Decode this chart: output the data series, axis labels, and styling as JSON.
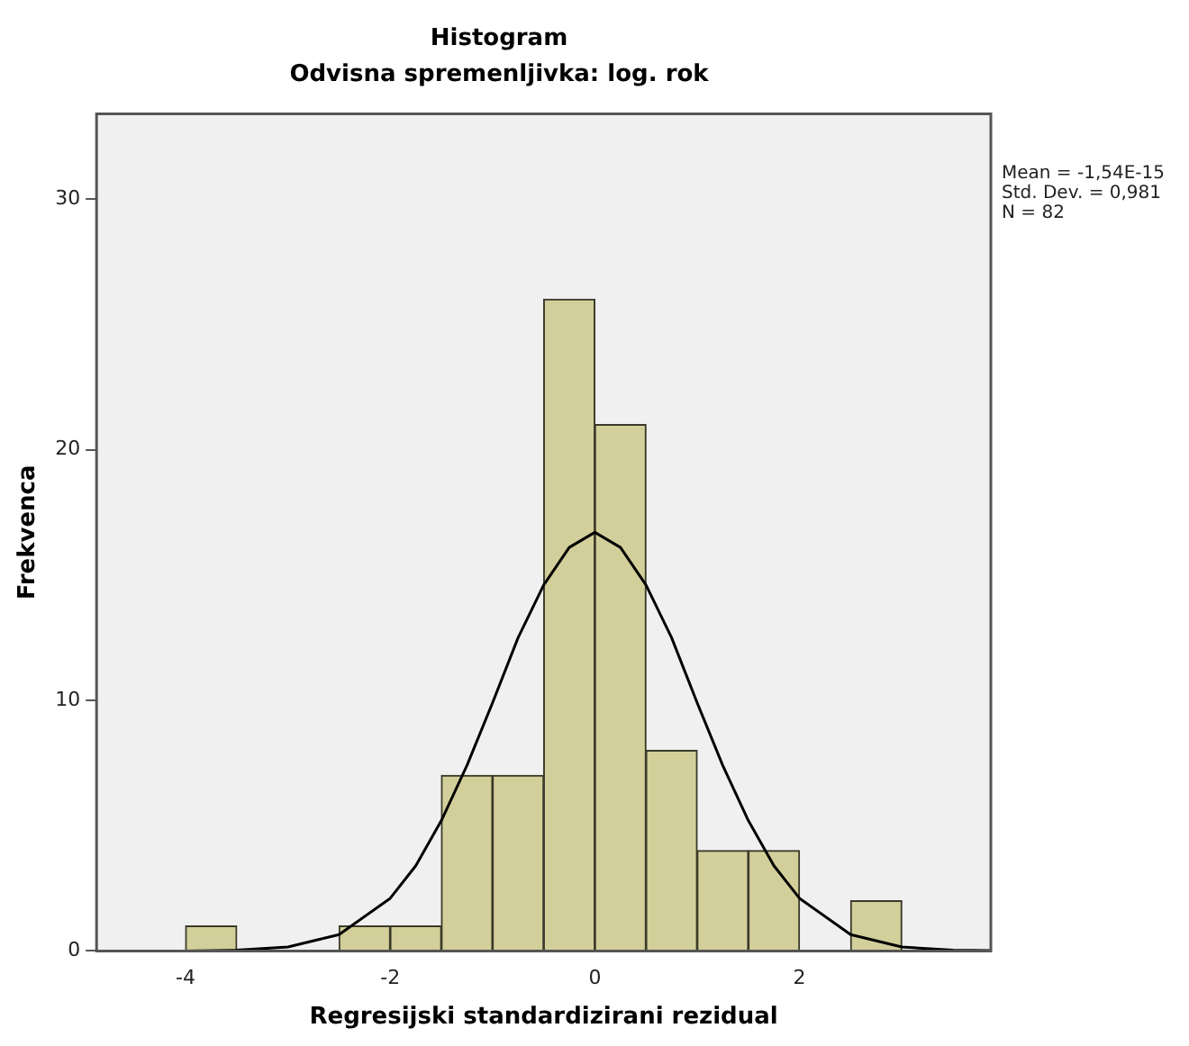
{
  "chart_data": {
    "type": "histogram",
    "title": "Histogram",
    "subtitle": "Odvisna spremenljivka: log. rok",
    "xlabel": "Regresijski standardizirani rezidual",
    "ylabel": "Frekvenca",
    "bins": [
      -4,
      -3.5,
      -3,
      -2.5,
      -2,
      -1.5,
      -1,
      -0.5,
      0,
      0.5,
      1,
      1.5,
      2,
      2.5,
      3
    ],
    "values": [
      1,
      0,
      0,
      1,
      1,
      7,
      7,
      26,
      21,
      8,
      4,
      4,
      0,
      2
    ],
    "color": "#d3cf9a",
    "series": [
      {
        "type": "line",
        "color": "#000000",
        "x": [
          -4.87,
          -4.5,
          -4,
          -3.5,
          -3,
          -2.5,
          -2,
          -1.75,
          -1.5,
          -1.25,
          -1,
          -0.75,
          -0.5,
          -0.25,
          0,
          0.25,
          0.5,
          0.75,
          1,
          1.25,
          1.5,
          1.75,
          2,
          2.5,
          3,
          3.5,
          3.87
        ],
        "values": [
          0,
          0,
          0,
          0.03,
          0.16,
          0.65,
          2.1,
          3.4,
          5.2,
          7.4,
          9.9,
          12.5,
          14.6,
          16.1,
          16.7,
          16.1,
          14.6,
          12.5,
          9.9,
          7.4,
          5.2,
          3.4,
          2.1,
          0.65,
          0.16,
          0.03,
          0.01
        ]
      }
    ],
    "xlim": [
      -4.87,
      3.87
    ],
    "xticks": [
      -4,
      -2,
      0,
      2
    ],
    "ylim": [
      0,
      33.4
    ],
    "yticks": [
      0,
      10,
      20,
      30
    ],
    "grid": false,
    "legend": false,
    "marker": "none",
    "annotations": [
      "Mean = -1,54E-15",
      "Std. Dev. = 0,981",
      "N = 82"
    ]
  }
}
